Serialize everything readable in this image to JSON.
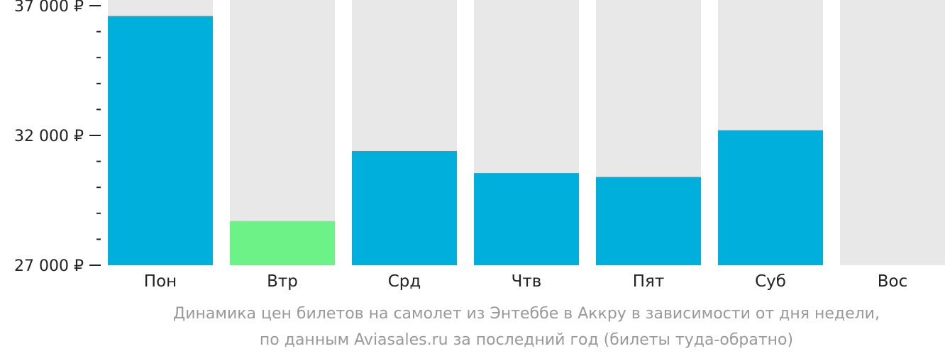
{
  "chart_data": {
    "type": "bar",
    "categories": [
      "Пон",
      "Втр",
      "Срд",
      "Чтв",
      "Пят",
      "Суб",
      "Вос"
    ],
    "values": [
      36600,
      28700,
      31400,
      30550,
      30400,
      32200,
      null
    ],
    "ylim": [
      27000,
      37000
    ],
    "yticks": [
      {
        "value": 37000,
        "label": "37 000 ₽"
      },
      {
        "value": 32000,
        "label": "32 000 ₽"
      },
      {
        "value": 27000,
        "label": "27 000 ₽"
      }
    ],
    "minor_tick_step": 1000,
    "highlight_index": 1,
    "colors": {
      "bar": "#00afdc",
      "highlight": "#6cf286",
      "background": "#e8e8e8",
      "axis_text": "#222222"
    },
    "caption_lines": [
      "Динамика цен билетов на самолет из Энтеббе в Аккру в зависимости от дня недели,",
      "по данным Aviasales.ru за последний год (билеты туда-обратно)"
    ]
  }
}
